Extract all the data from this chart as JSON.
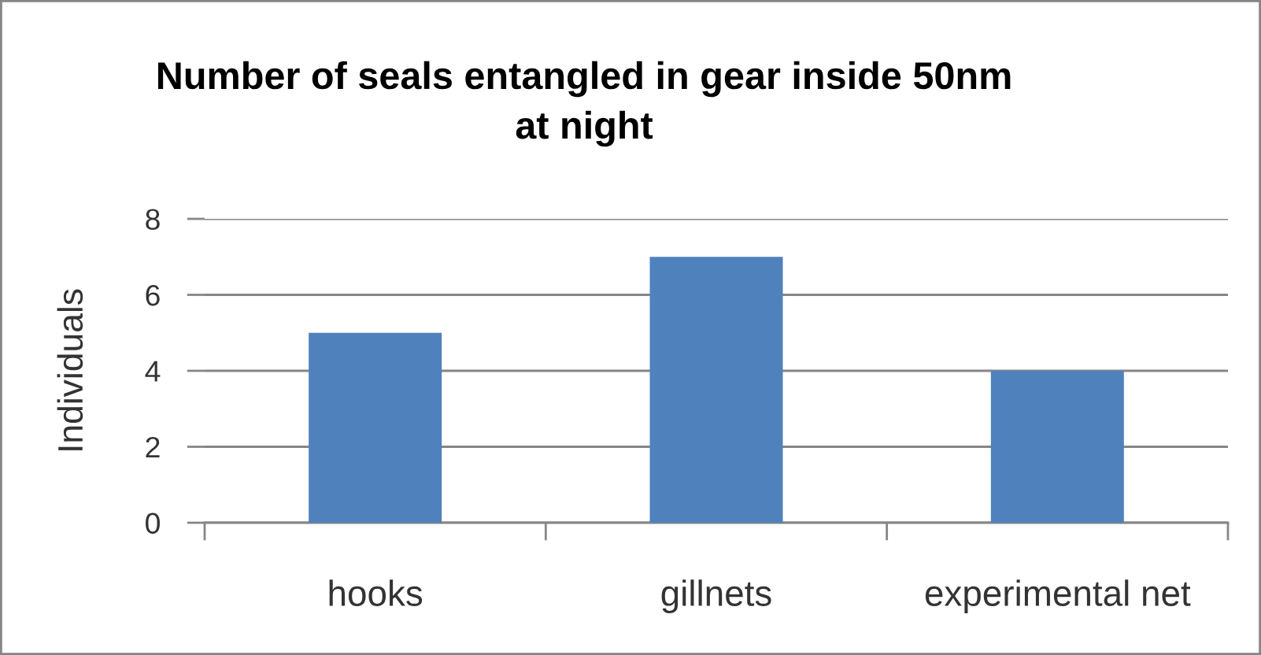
{
  "chart_data": {
    "type": "bar",
    "title": "Number of seals entangled in gear inside 50nm\nat night",
    "ylabel": "Individuals",
    "categories": [
      "hooks",
      "gillnets",
      "experimental net"
    ],
    "values": [
      5,
      7,
      4
    ],
    "color": "#4f81bd",
    "ylim": [
      0,
      8
    ],
    "yticks": [
      0,
      2,
      4,
      6,
      8
    ],
    "grid": "y"
  }
}
